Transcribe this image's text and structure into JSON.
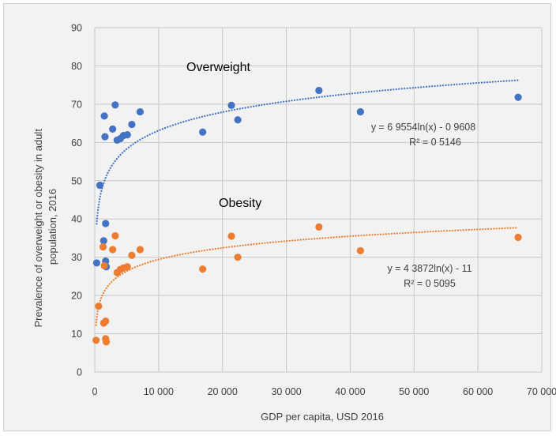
{
  "chart_data": {
    "type": "scatter",
    "xlabel": "GDP per capita, USD 2016",
    "ylabel_lines": [
      "Prevalence of overweight or obesity in adult",
      "population, 2016"
    ],
    "xlim": [
      0,
      70000
    ],
    "ylim": [
      0,
      90
    ],
    "x_ticks": [
      0,
      10000,
      20000,
      30000,
      40000,
      50000,
      60000,
      70000
    ],
    "x_tick_labels": [
      "0",
      "10 000",
      "20 000",
      "30 000",
      "40 000",
      "50 000",
      "60 000",
      "70 000"
    ],
    "y_ticks": [
      0,
      10,
      20,
      30,
      40,
      50,
      60,
      70,
      80,
      90
    ],
    "y_tick_labels": [
      "0",
      "10",
      "20",
      "30",
      "40",
      "50",
      "60",
      "70",
      "80",
      "90"
    ],
    "grid": true,
    "series": [
      {
        "name": "Overweight",
        "color": "#4472c4",
        "trend": {
          "type": "log",
          "a": 6.9554,
          "b": -0.9608,
          "equation": "y = 6 9554ln(x) - 0 9608",
          "r2": "R² = 0 5146"
        },
        "points": [
          [
            300,
            28.5
          ],
          [
            800,
            48.8
          ],
          [
            1400,
            34.3
          ],
          [
            1500,
            66.9
          ],
          [
            1600,
            61.5
          ],
          [
            1700,
            38.8
          ],
          [
            1700,
            29.0
          ],
          [
            1800,
            27.5
          ],
          [
            2800,
            63.5
          ],
          [
            3200,
            69.8
          ],
          [
            3500,
            60.6
          ],
          [
            4000,
            61.0
          ],
          [
            4500,
            61.8
          ],
          [
            5100,
            62.0
          ],
          [
            5800,
            64.7
          ],
          [
            7100,
            68.0
          ],
          [
            16900,
            62.7
          ],
          [
            21400,
            69.7
          ],
          [
            22400,
            65.9
          ],
          [
            35100,
            73.6
          ],
          [
            41600,
            68.0
          ],
          [
            66300,
            71.8
          ]
        ]
      },
      {
        "name": "Obesity",
        "color": "#ed7d31",
        "trend": {
          "type": "log",
          "a": 4.3872,
          "b": -11,
          "equation": "y = 4 3872ln(x) - 11",
          "r2": "R² = 0 5095"
        },
        "points": [
          [
            200,
            8.3
          ],
          [
            600,
            17.2
          ],
          [
            1300,
            32.7
          ],
          [
            1400,
            12.8
          ],
          [
            1500,
            27.8
          ],
          [
            1700,
            13.3
          ],
          [
            1700,
            8.7
          ],
          [
            1800,
            7.9
          ],
          [
            2800,
            32.0
          ],
          [
            3200,
            35.6
          ],
          [
            3500,
            26.0
          ],
          [
            4000,
            26.8
          ],
          [
            4500,
            27.2
          ],
          [
            5100,
            27.5
          ],
          [
            5800,
            30.5
          ],
          [
            7100,
            32.0
          ],
          [
            16900,
            26.9
          ],
          [
            21400,
            35.5
          ],
          [
            22400,
            30.0
          ],
          [
            35100,
            37.9
          ],
          [
            41600,
            31.7
          ],
          [
            66300,
            35.2
          ]
        ]
      }
    ]
  }
}
